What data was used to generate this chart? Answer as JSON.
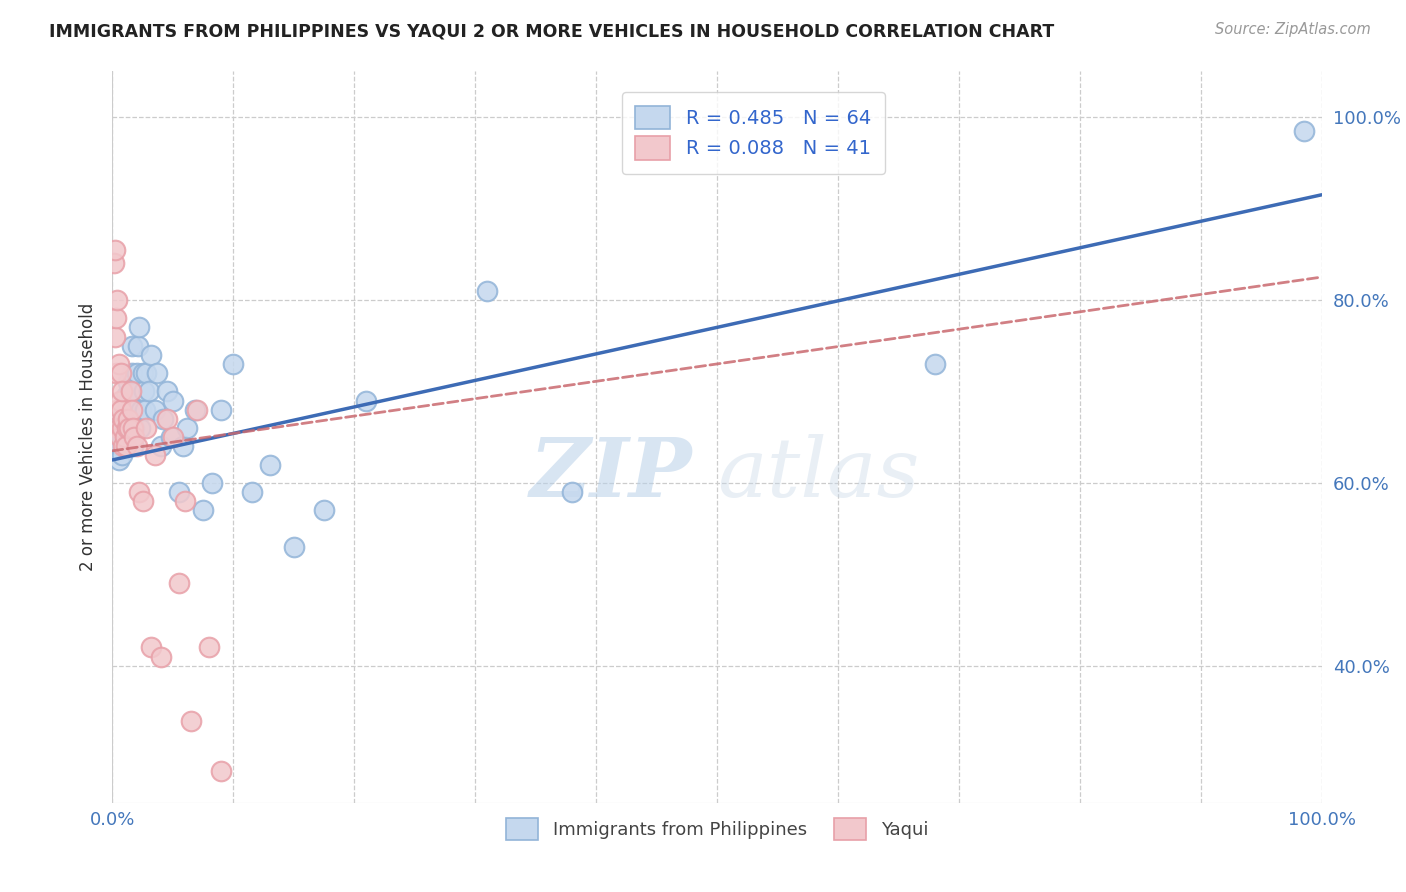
{
  "title": "IMMIGRANTS FROM PHILIPPINES VS YAQUI 2 OR MORE VEHICLES IN HOUSEHOLD CORRELATION CHART",
  "source": "Source: ZipAtlas.com",
  "ylabel": "2 or more Vehicles in Household",
  "legend_line1": "R = 0.485   N = 64",
  "legend_line2": "R = 0.088   N = 41",
  "blue_color": "#92B4D8",
  "blue_fill": "#C5D8EE",
  "pink_color": "#E8A0A8",
  "pink_fill": "#F2C8CC",
  "blue_line_color": "#3D6BB5",
  "pink_line_color": "#C9696F",
  "watermark_zip": "ZIP",
  "watermark_atlas": "atlas",
  "legend_label1": "Immigrants from Philippines",
  "legend_label2": "Yaqui",
  "background_color": "#FFFFFF",
  "grid_color": "#CCCCCC",
  "xlim": [
    0,
    1.0
  ],
  "ylim": [
    0.25,
    1.05
  ],
  "blue_line_x0": 0.0,
  "blue_line_y0": 0.625,
  "blue_line_x1": 1.0,
  "blue_line_y1": 0.915,
  "pink_line_x0": 0.0,
  "pink_line_y0": 0.635,
  "pink_line_x1": 1.0,
  "pink_line_y1": 0.825,
  "blue_x": [
    0.002,
    0.003,
    0.004,
    0.004,
    0.005,
    0.005,
    0.006,
    0.006,
    0.007,
    0.008,
    0.008,
    0.009,
    0.009,
    0.01,
    0.01,
    0.011,
    0.011,
    0.012,
    0.012,
    0.013,
    0.013,
    0.014,
    0.014,
    0.015,
    0.016,
    0.016,
    0.017,
    0.018,
    0.019,
    0.02,
    0.021,
    0.022,
    0.023,
    0.024,
    0.025,
    0.026,
    0.027,
    0.028,
    0.03,
    0.032,
    0.035,
    0.037,
    0.04,
    0.042,
    0.045,
    0.048,
    0.05,
    0.055,
    0.058,
    0.062,
    0.068,
    0.075,
    0.082,
    0.09,
    0.1,
    0.115,
    0.13,
    0.15,
    0.175,
    0.21,
    0.31,
    0.38,
    0.68,
    0.985
  ],
  "blue_y": [
    0.645,
    0.655,
    0.66,
    0.67,
    0.625,
    0.65,
    0.64,
    0.66,
    0.655,
    0.63,
    0.65,
    0.66,
    0.675,
    0.64,
    0.66,
    0.67,
    0.695,
    0.66,
    0.68,
    0.69,
    0.71,
    0.655,
    0.68,
    0.7,
    0.72,
    0.75,
    0.64,
    0.66,
    0.68,
    0.72,
    0.75,
    0.77,
    0.66,
    0.68,
    0.72,
    0.7,
    0.68,
    0.72,
    0.7,
    0.74,
    0.68,
    0.72,
    0.64,
    0.67,
    0.7,
    0.65,
    0.69,
    0.59,
    0.64,
    0.66,
    0.68,
    0.57,
    0.6,
    0.68,
    0.73,
    0.59,
    0.62,
    0.53,
    0.57,
    0.69,
    0.81,
    0.59,
    0.73,
    0.985
  ],
  "pink_x": [
    0.001,
    0.002,
    0.002,
    0.003,
    0.003,
    0.004,
    0.004,
    0.005,
    0.005,
    0.006,
    0.006,
    0.007,
    0.007,
    0.008,
    0.008,
    0.009,
    0.009,
    0.01,
    0.011,
    0.012,
    0.013,
    0.014,
    0.015,
    0.016,
    0.017,
    0.018,
    0.02,
    0.022,
    0.025,
    0.028,
    0.032,
    0.035,
    0.04,
    0.045,
    0.05,
    0.055,
    0.06,
    0.065,
    0.07,
    0.08,
    0.09
  ],
  "pink_y": [
    0.84,
    0.855,
    0.76,
    0.78,
    0.72,
    0.8,
    0.68,
    0.73,
    0.66,
    0.69,
    0.65,
    0.68,
    0.72,
    0.66,
    0.7,
    0.67,
    0.64,
    0.65,
    0.64,
    0.66,
    0.67,
    0.66,
    0.7,
    0.68,
    0.66,
    0.65,
    0.64,
    0.59,
    0.58,
    0.66,
    0.42,
    0.63,
    0.41,
    0.67,
    0.65,
    0.49,
    0.58,
    0.34,
    0.68,
    0.42,
    0.285
  ]
}
